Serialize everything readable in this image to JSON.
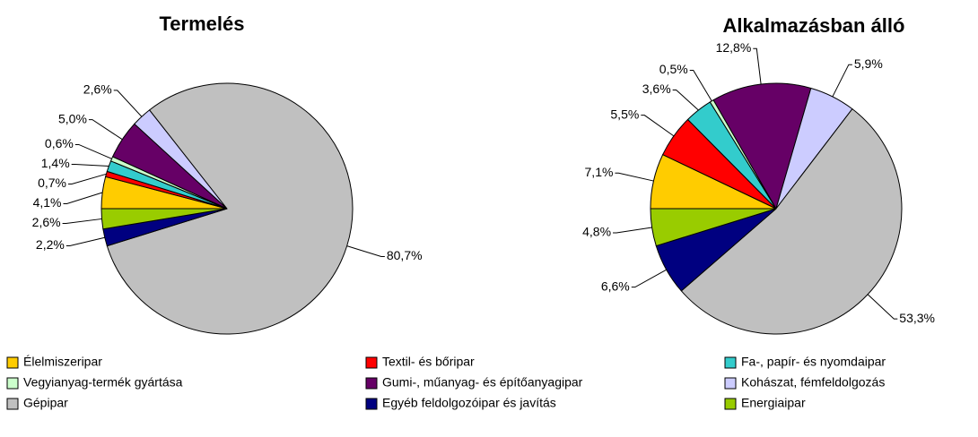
{
  "categories": [
    "Élelmiszeripar",
    "Textil- és bőripar",
    "Fa-, papír- és nyomdaipar",
    "Vegyianyag-termék gyártása",
    "Gumi-, műanyag- és építőanyagipar",
    "Kohászat, fémfeldolgozás",
    "Gépipar",
    "Egyéb feldolgozóipar és javítás",
    "Energiaipar"
  ],
  "colors": [
    "#FFCC00",
    "#FF0000",
    "#33CCCC",
    "#CCFFCC",
    "#660066",
    "#CCCCFF",
    "#C0C0C0",
    "#000080",
    "#99CC00"
  ],
  "chart_data": [
    {
      "type": "pie",
      "title": "Termelés",
      "values": [
        4.1,
        0.7,
        1.4,
        0.6,
        5.0,
        2.6,
        80.7,
        2.2,
        2.6
      ],
      "value_labels": [
        "4,1%",
        "0,7%",
        "1,4%",
        "0,6%",
        "5,0%",
        "2,6%",
        "80,7%",
        "2,2%",
        "2,6%"
      ]
    },
    {
      "type": "pie",
      "title": "Alkalmazásban álló",
      "values": [
        7.1,
        5.5,
        3.6,
        0.5,
        12.8,
        5.9,
        53.3,
        6.6,
        4.8
      ],
      "value_labels": [
        "7,1%",
        "5,5%",
        "3,6%",
        "0,5%",
        "12,8%",
        "5,9%",
        "53,3%",
        "6,6%",
        "4,8%"
      ]
    }
  ]
}
